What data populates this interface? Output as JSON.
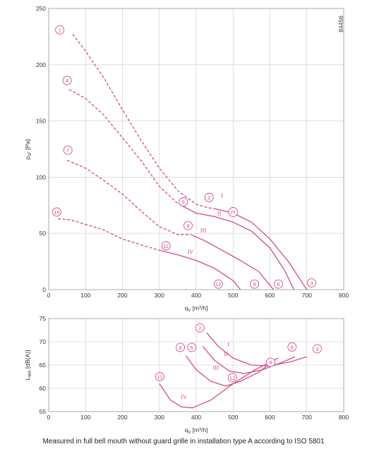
{
  "colors": {
    "curve": "#d24b8c",
    "grid": "#c8c8c8",
    "text": "#333333"
  },
  "figure_id": "84456",
  "caption": "Measured in full bell mouth without guard grille in installation type A according to ISO 5801",
  "chart_data": [
    {
      "type": "line",
      "ylabel": "p_sF [Pa]",
      "xlabel": "q_V [m³/h]",
      "xlim": [
        0,
        800
      ],
      "ylim": [
        0,
        250
      ],
      "xticks": [
        0,
        100,
        200,
        300,
        400,
        500,
        600,
        700,
        800
      ],
      "yticks": [
        0,
        50,
        100,
        150,
        200,
        250
      ],
      "grid": true,
      "series": [
        {
          "name": "I",
          "segments": [
            {
              "style": "dashed",
              "points": [
                [
                  65,
                  227
                ],
                [
                  100,
                  212
                ],
                [
                  150,
                  188
                ],
                [
                  200,
                  160
                ],
                [
                  250,
                  133
                ],
                [
                  300,
                  108
                ],
                [
                  350,
                  88
                ],
                [
                  400,
                  76
                ],
                [
                  430,
                  73
                ],
                [
                  450,
                  72
                ]
              ]
            },
            {
              "style": "solid",
              "points": [
                [
                  450,
                  72
                ],
                [
                  500,
                  68
                ],
                [
                  550,
                  60
                ],
                [
                  600,
                  45
                ],
                [
                  650,
                  25
                ],
                [
                  700,
                  0
                ]
              ]
            }
          ]
        },
        {
          "name": "II",
          "segments": [
            {
              "style": "dashed",
              "points": [
                [
                  55,
                  178
                ],
                [
                  100,
                  170
                ],
                [
                  150,
                  155
                ],
                [
                  200,
                  135
                ],
                [
                  250,
                  115
                ],
                [
                  300,
                  92
                ],
                [
                  345,
                  78
                ],
                [
                  365,
                  74
                ]
              ]
            },
            {
              "style": "solid",
              "points": [
                [
                  365,
                  74
                ],
                [
                  400,
                  68
                ],
                [
                  450,
                  65
                ],
                [
                  500,
                  60
                ],
                [
                  550,
                  52
                ],
                [
                  600,
                  37
                ],
                [
                  640,
                  17
                ],
                [
                  665,
                  0
                ]
              ]
            }
          ]
        },
        {
          "name": "III",
          "segments": [
            {
              "style": "dashed",
              "points": [
                [
                  50,
                  115
                ],
                [
                  100,
                  108
                ],
                [
                  150,
                  97
                ],
                [
                  200,
                  85
                ],
                [
                  250,
                  70
                ],
                [
                  300,
                  56
                ],
                [
                  350,
                  49
                ],
                [
                  385,
                  49
                ]
              ]
            },
            {
              "style": "solid",
              "points": [
                [
                  385,
                  49
                ],
                [
                  420,
                  44
                ],
                [
                  470,
                  35
                ],
                [
                  520,
                  26
                ],
                [
                  570,
                  16
                ],
                [
                  610,
                  0
                ]
              ]
            }
          ]
        },
        {
          "name": "IV",
          "segments": [
            {
              "style": "dashed",
              "points": [
                [
                  25,
                  63
                ],
                [
                  60,
                  62
                ],
                [
                  100,
                  58
                ],
                [
                  150,
                  53
                ],
                [
                  200,
                  45
                ],
                [
                  250,
                  40
                ],
                [
                  300,
                  35
                ]
              ]
            },
            {
              "style": "solid",
              "points": [
                [
                  300,
                  35
                ],
                [
                  350,
                  31
                ],
                [
                  400,
                  26
                ],
                [
                  450,
                  19
                ],
                [
                  500,
                  8
                ],
                [
                  520,
                  0
                ]
              ]
            }
          ]
        }
      ],
      "markers": [
        {
          "label": "1",
          "x": 30,
          "y": 231
        },
        {
          "label": "4",
          "x": 50,
          "y": 186
        },
        {
          "label": "7",
          "x": 52,
          "y": 124
        },
        {
          "label": "10",
          "x": 22,
          "y": 69
        },
        {
          "label": "2",
          "x": 435,
          "y": 82
        },
        {
          "label": "5",
          "x": 365,
          "y": 78
        },
        {
          "label": "8",
          "x": 378,
          "y": 57
        },
        {
          "label": "11",
          "x": 318,
          "y": 39
        },
        {
          "label": "12",
          "x": 460,
          "y": 5
        },
        {
          "label": "9",
          "x": 558,
          "y": 5
        },
        {
          "label": "6",
          "x": 623,
          "y": 5
        },
        {
          "label": "3",
          "x": 713,
          "y": 6
        },
        {
          "label": "Π",
          "x": 500,
          "y": 69
        }
      ],
      "curve_labels": [
        {
          "label": "I",
          "x": 467,
          "y": 82
        },
        {
          "label": "II",
          "x": 457,
          "y": 66
        },
        {
          "label": "III",
          "x": 411,
          "y": 51
        },
        {
          "label": "IV",
          "x": 376,
          "y": 32
        }
      ]
    },
    {
      "type": "line",
      "ylabel": "L_WA [dB(A)]",
      "xlabel": "q_V [m³/h]",
      "xlim": [
        0,
        800
      ],
      "ylim": [
        55,
        75
      ],
      "xticks": [
        0,
        100,
        200,
        300,
        400,
        500,
        600,
        700,
        800
      ],
      "yticks": [
        55,
        60,
        65,
        70,
        75
      ],
      "grid": true,
      "series": [
        {
          "name": "I",
          "segments": [
            {
              "style": "solid",
              "points": [
                [
                  428,
                  72
                ],
                [
                  460,
                  69
                ],
                [
                  500,
                  66.5
                ],
                [
                  550,
                  65
                ],
                [
                  600,
                  64.8
                ],
                [
                  660,
                  65.8
                ],
                [
                  700,
                  66.8
                ]
              ]
            }
          ]
        },
        {
          "name": "II",
          "segments": [
            {
              "style": "solid",
              "points": [
                [
                  418,
                  69
                ],
                [
                  450,
                  66
                ],
                [
                  490,
                  63.7
                ],
                [
                  530,
                  63.2
                ],
                [
                  580,
                  64
                ],
                [
                  630,
                  65.5
                ],
                [
                  668,
                  66.8
                ]
              ]
            }
          ]
        },
        {
          "name": "III",
          "segments": [
            {
              "style": "solid",
              "points": [
                [
                  372,
                  67
                ],
                [
                  400,
                  64
                ],
                [
                  440,
                  61.5
                ],
                [
                  480,
                  60.5
                ],
                [
                  520,
                  61.5
                ],
                [
                  570,
                  63.5
                ],
                [
                  612,
                  66
                ]
              ]
            }
          ]
        },
        {
          "name": "IV",
          "segments": [
            {
              "style": "solid",
              "points": [
                [
                  300,
                  61
                ],
                [
                  330,
                  57.5
                ],
                [
                  360,
                  56
                ],
                [
                  390,
                  55.8
                ],
                [
                  440,
                  57.5
                ],
                [
                  500,
                  61
                ],
                [
                  560,
                  64
                ],
                [
                  622,
                  66.5
                ]
              ]
            }
          ]
        }
      ],
      "markers": [
        {
          "label": "2",
          "x": 410,
          "y": 73
        },
        {
          "label": "5",
          "x": 388,
          "y": 68.8
        },
        {
          "label": "8",
          "x": 357,
          "y": 68.8
        },
        {
          "label": "11",
          "x": 301,
          "y": 62.5
        },
        {
          "label": "12",
          "x": 498,
          "y": 62.3
        },
        {
          "label": "9",
          "x": 602,
          "y": 65.6
        },
        {
          "label": "6",
          "x": 660,
          "y": 68.9
        },
        {
          "label": "3",
          "x": 728,
          "y": 68.5
        }
      ],
      "curve_labels": [
        {
          "label": "I",
          "x": 485,
          "y": 69
        },
        {
          "label": "II",
          "x": 475,
          "y": 67
        },
        {
          "label": "III",
          "x": 445,
          "y": 64
        },
        {
          "label": "IV",
          "x": 358,
          "y": 57.7
        }
      ]
    }
  ]
}
